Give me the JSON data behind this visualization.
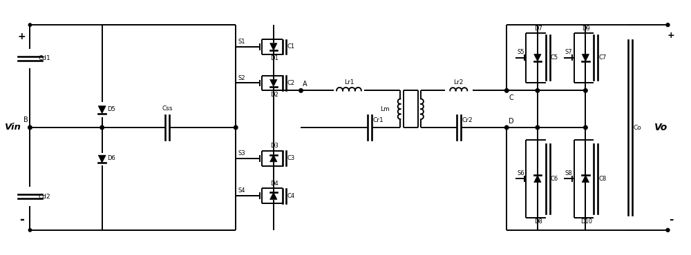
{
  "figsize": [
    10.0,
    3.7
  ],
  "dpi": 100,
  "bg_color": "white",
  "lc": "black",
  "lw": 1.4,
  "labels": {
    "Vin": "Vin",
    "plus_left": "+",
    "minus_left": "-",
    "Cd1": "Cd1",
    "Cd2": "Cd2",
    "D5": "D5",
    "D6": "D6",
    "Css": "Css",
    "S1": "S1",
    "S2": "S2",
    "S3": "S3",
    "S4": "S4",
    "D1": "D1",
    "D2": "D2",
    "D3": "D3",
    "D4": "D4",
    "C1": "C1",
    "C2": "C2",
    "C3": "C3",
    "C4": "C4",
    "A": "A",
    "B": "B",
    "Lr1": "Lr1",
    "Lr2": "Lr2",
    "Lm": "Lm",
    "Cr1": "Cr1",
    "Cr2": "Cr2",
    "S5": "S5",
    "S6": "S6",
    "S7": "S7",
    "S8": "S8",
    "D7": "D7",
    "D8": "D8",
    "D9": "D9",
    "D10": "D10",
    "C5": "C5",
    "C6": "C6",
    "C7": "C7",
    "C8": "C8",
    "C_node": "C",
    "D_node": "D",
    "Co": "Co",
    "Vo": "Vo",
    "plus_right": "+",
    "minus_right": "-"
  }
}
